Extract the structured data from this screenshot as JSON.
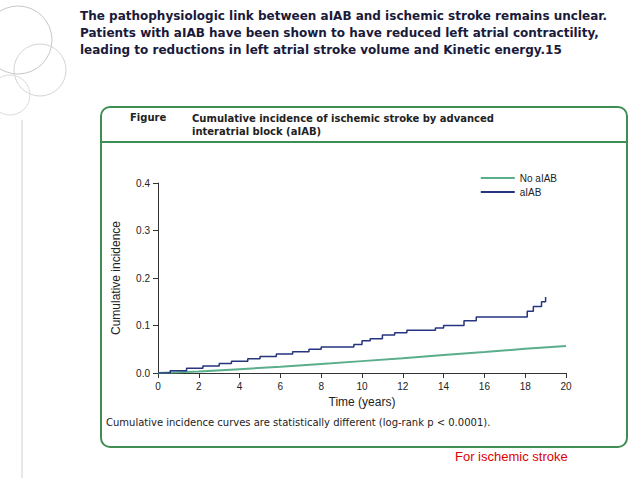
{
  "slide": {
    "heading": "The pathophysiologic link between aIAB and ischemic stroke remains unclear. Patients with aIAB have been shown to have reduced left atrial contractility, leading to reductions in left atrial stroke volume and Kinetic energy.15",
    "figure_label": "Figure",
    "figure_title": "Cumulative incidence of ischemic stroke by advanced interatrial block (aIAB)",
    "caption": "Cumulative incidence curves are statistically different (log-rank p < 0.0001).",
    "footnote": "For ischemic stroke"
  },
  "chart_data": {
    "type": "line",
    "x_label": "Time (years)",
    "y_label": "Cumulative incidence",
    "series": [
      {
        "name": "No aIAB",
        "color": "#5aae8c",
        "line_style": "solid",
        "x": [
          0,
          2,
          4,
          6,
          8,
          10,
          12,
          14,
          16,
          18,
          20
        ],
        "values": [
          0,
          0.003,
          0.008,
          0.013,
          0.019,
          0.025,
          0.031,
          0.038,
          0.044,
          0.051,
          0.057
        ]
      },
      {
        "name": "aIAB",
        "color": "#27347f",
        "line_style": "step",
        "x": [
          0,
          0.6,
          1.4,
          2.2,
          3.0,
          3.6,
          4.4,
          5.0,
          5.8,
          6.6,
          7.4,
          8.0,
          9.6,
          10.0,
          10.4,
          11.0,
          11.6,
          12.2,
          13.6,
          14.0,
          15.0,
          15.6,
          18.1,
          18.4,
          18.8,
          19.0
        ],
        "values": [
          0,
          0.005,
          0.01,
          0.015,
          0.02,
          0.025,
          0.03,
          0.035,
          0.04,
          0.045,
          0.05,
          0.055,
          0.06,
          0.068,
          0.072,
          0.08,
          0.085,
          0.09,
          0.095,
          0.1,
          0.11,
          0.118,
          0.13,
          0.14,
          0.15,
          0.16
        ]
      }
    ],
    "xlim": [
      0,
      20
    ],
    "xticks": [
      0,
      2,
      4,
      6,
      8,
      10,
      12,
      14,
      16,
      18,
      20
    ],
    "ylim": [
      0,
      0.4
    ],
    "yticks": [
      {
        "value": 0,
        "label": "0.0"
      },
      {
        "value": 0.1,
        "label": "0.1"
      },
      {
        "value": 0.2,
        "label": "0.2"
      },
      {
        "value": 0.3,
        "label": "0.3"
      },
      {
        "value": 0.4,
        "label": "0.4"
      }
    ],
    "legend": "top-right",
    "grid": false
  }
}
